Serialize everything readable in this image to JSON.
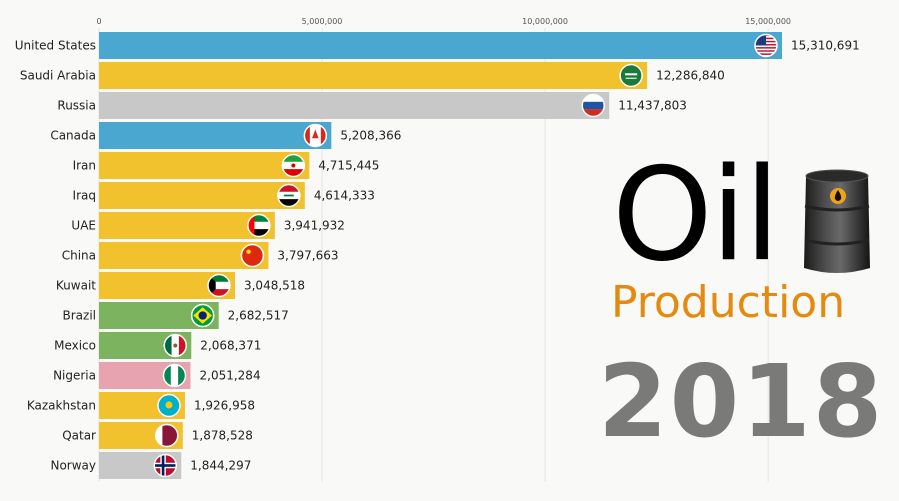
{
  "title": {
    "word1": "Oil",
    "word2": "Production",
    "year": "2018",
    "colors": {
      "oil": "#000000",
      "production": "#e58a0f",
      "year": "#7a7a78"
    }
  },
  "barrel_icon": "oil-barrel-icon",
  "chart_data": {
    "type": "bar",
    "orientation": "horizontal",
    "categories": [
      "United States",
      "Saudi Arabia",
      "Russia",
      "Canada",
      "Iran",
      "Iraq",
      "UAE",
      "China",
      "Kuwait",
      "Brazil",
      "Mexico",
      "Nigeria",
      "Kazakhstan",
      "Qatar",
      "Norway"
    ],
    "values": [
      15310691,
      12286840,
      11437803,
      5208366,
      4715445,
      4614333,
      3941932,
      3797663,
      3048518,
      2682517,
      2068371,
      2051284,
      1926958,
      1878528,
      1844297
    ],
    "value_labels": [
      "15,310,691",
      "12,286,840",
      "11,437,803",
      "5,208,366",
      "4,715,445",
      "4,614,333",
      "3,941,932",
      "3,797,663",
      "3,048,518",
      "2,682,517",
      "2,068,371",
      "2,051,284",
      "1,926,958",
      "1,878,528",
      "1,844,297"
    ],
    "bar_colors": [
      "#4aa8d0",
      "#f2c12e",
      "#c8c8c8",
      "#4aa8d0",
      "#f2c12e",
      "#f2c12e",
      "#f2c12e",
      "#f2c12e",
      "#f2c12e",
      "#7bb35e",
      "#7bb35e",
      "#e8a3b0",
      "#f2c12e",
      "#f2c12e",
      "#c8c8c8"
    ],
    "flags": [
      "united-states-flag-icon",
      "saudi-arabia-flag-icon",
      "russia-flag-icon",
      "canada-flag-icon",
      "iran-flag-icon",
      "iraq-flag-icon",
      "uae-flag-icon",
      "china-flag-icon",
      "kuwait-flag-icon",
      "brazil-flag-icon",
      "mexico-flag-icon",
      "nigeria-flag-icon",
      "kazakhstan-flag-icon",
      "qatar-flag-icon",
      "norway-flag-icon"
    ],
    "x_ticks": [
      0,
      5000000,
      10000000,
      15000000
    ],
    "x_tick_labels": [
      "0",
      "5,000,000",
      "10,000,000",
      "15,000,000"
    ],
    "xlim": [
      0,
      15310691
    ],
    "grid": true,
    "xlabel": "",
    "ylabel": ""
  }
}
